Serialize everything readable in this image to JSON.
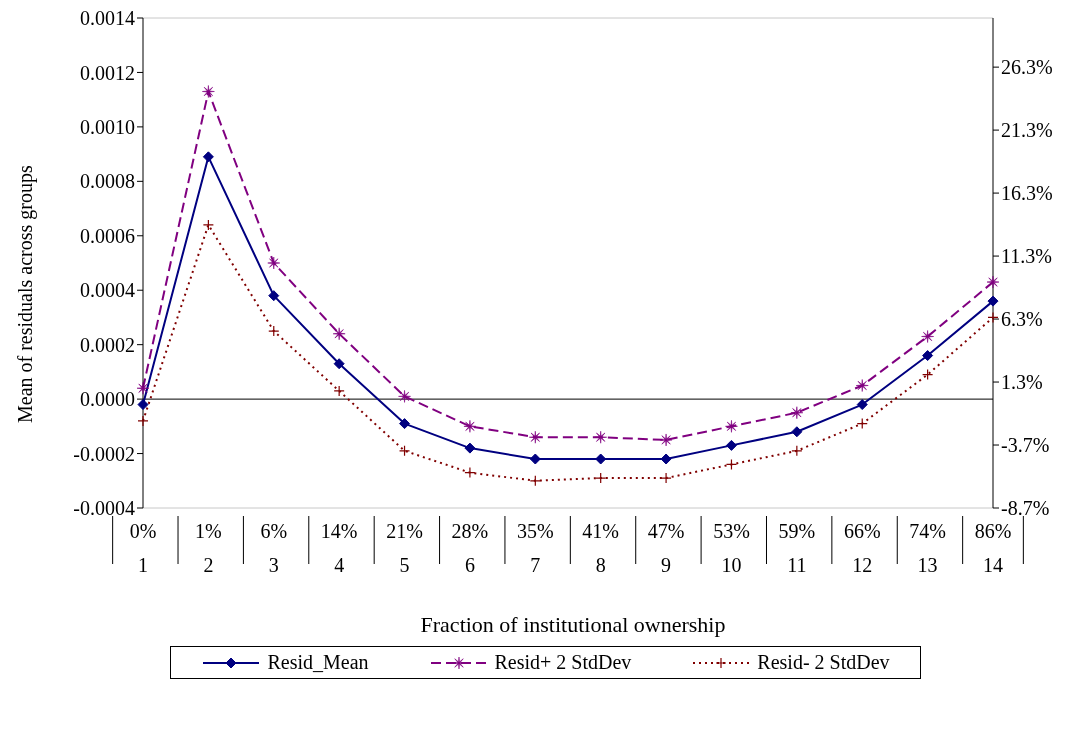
{
  "chart_data": {
    "type": "line",
    "xlabel": "Fraction of institutional ownership",
    "ylabel": "Mean of residuals across groups",
    "categories": [
      "0%\n1",
      "1%\n2",
      "6%\n3",
      "14%\n4",
      "21%\n5",
      "28%\n6",
      "35%\n7",
      "41%\n8",
      "47%\n9",
      "53%\n10",
      "59%\n11",
      "66%\n12",
      "74%\n13",
      "86%\n14"
    ],
    "series": [
      {
        "name": "Resid_Mean",
        "color": "#000080",
        "marker": "diamond",
        "line_style": "solid",
        "values": [
          -2e-05,
          0.00089,
          0.00038,
          0.00013,
          -9e-05,
          -0.00018,
          -0.00022,
          -0.00022,
          -0.00022,
          -0.00017,
          -0.00012,
          -2e-05,
          0.00016,
          0.00036
        ]
      },
      {
        "name": "Resid+ 2 StdDev",
        "color": "#800080",
        "marker": "star",
        "line_style": "dashed",
        "values": [
          4e-05,
          0.00113,
          0.0005,
          0.00024,
          1e-05,
          -0.0001,
          -0.00014,
          -0.00014,
          -0.00015,
          -0.0001,
          -5e-05,
          5e-05,
          0.00023,
          0.00043
        ]
      },
      {
        "name": "Resid- 2 StdDev",
        "color": "#800000",
        "marker": "cross",
        "line_style": "dotted",
        "values": [
          -8e-05,
          0.00064,
          0.00025,
          3e-05,
          -0.00019,
          -0.00027,
          -0.0003,
          -0.00029,
          -0.00029,
          -0.00024,
          -0.00019,
          -9e-05,
          9e-05,
          0.0003
        ]
      }
    ],
    "ylim": [
      -0.0004,
      0.0014
    ],
    "yticks": [
      {
        "value": -0.0004,
        "label": "-0.0004"
      },
      {
        "value": -0.0002,
        "label": "-0.0002"
      },
      {
        "value": 0,
        "label": "0.0000"
      },
      {
        "value": 0.0002,
        "label": "0.0002"
      },
      {
        "value": 0.0004,
        "label": "0.0004"
      },
      {
        "value": 0.0006,
        "label": "0.0006"
      },
      {
        "value": 0.0008,
        "label": "0.0008"
      },
      {
        "value": 0.001,
        "label": "0.0010"
      },
      {
        "value": 0.0012,
        "label": "0.0012"
      },
      {
        "value": 0.0014,
        "label": "0.0014"
      }
    ],
    "y2lim": [
      -8.7,
      30.2
    ],
    "y2ticks": [
      {
        "value": -8.7,
        "label": "-8.7%"
      },
      {
        "value": -3.7,
        "label": "-3.7%"
      },
      {
        "value": 1.3,
        "label": "1.3%"
      },
      {
        "value": 6.3,
        "label": "6.3%"
      },
      {
        "value": 11.3,
        "label": "11.3%"
      },
      {
        "value": 16.3,
        "label": "16.3%"
      },
      {
        "value": 21.3,
        "label": "21.3%"
      },
      {
        "value": 26.3,
        "label": "26.3%"
      }
    ],
    "grid": "y",
    "legend": "bottom"
  }
}
